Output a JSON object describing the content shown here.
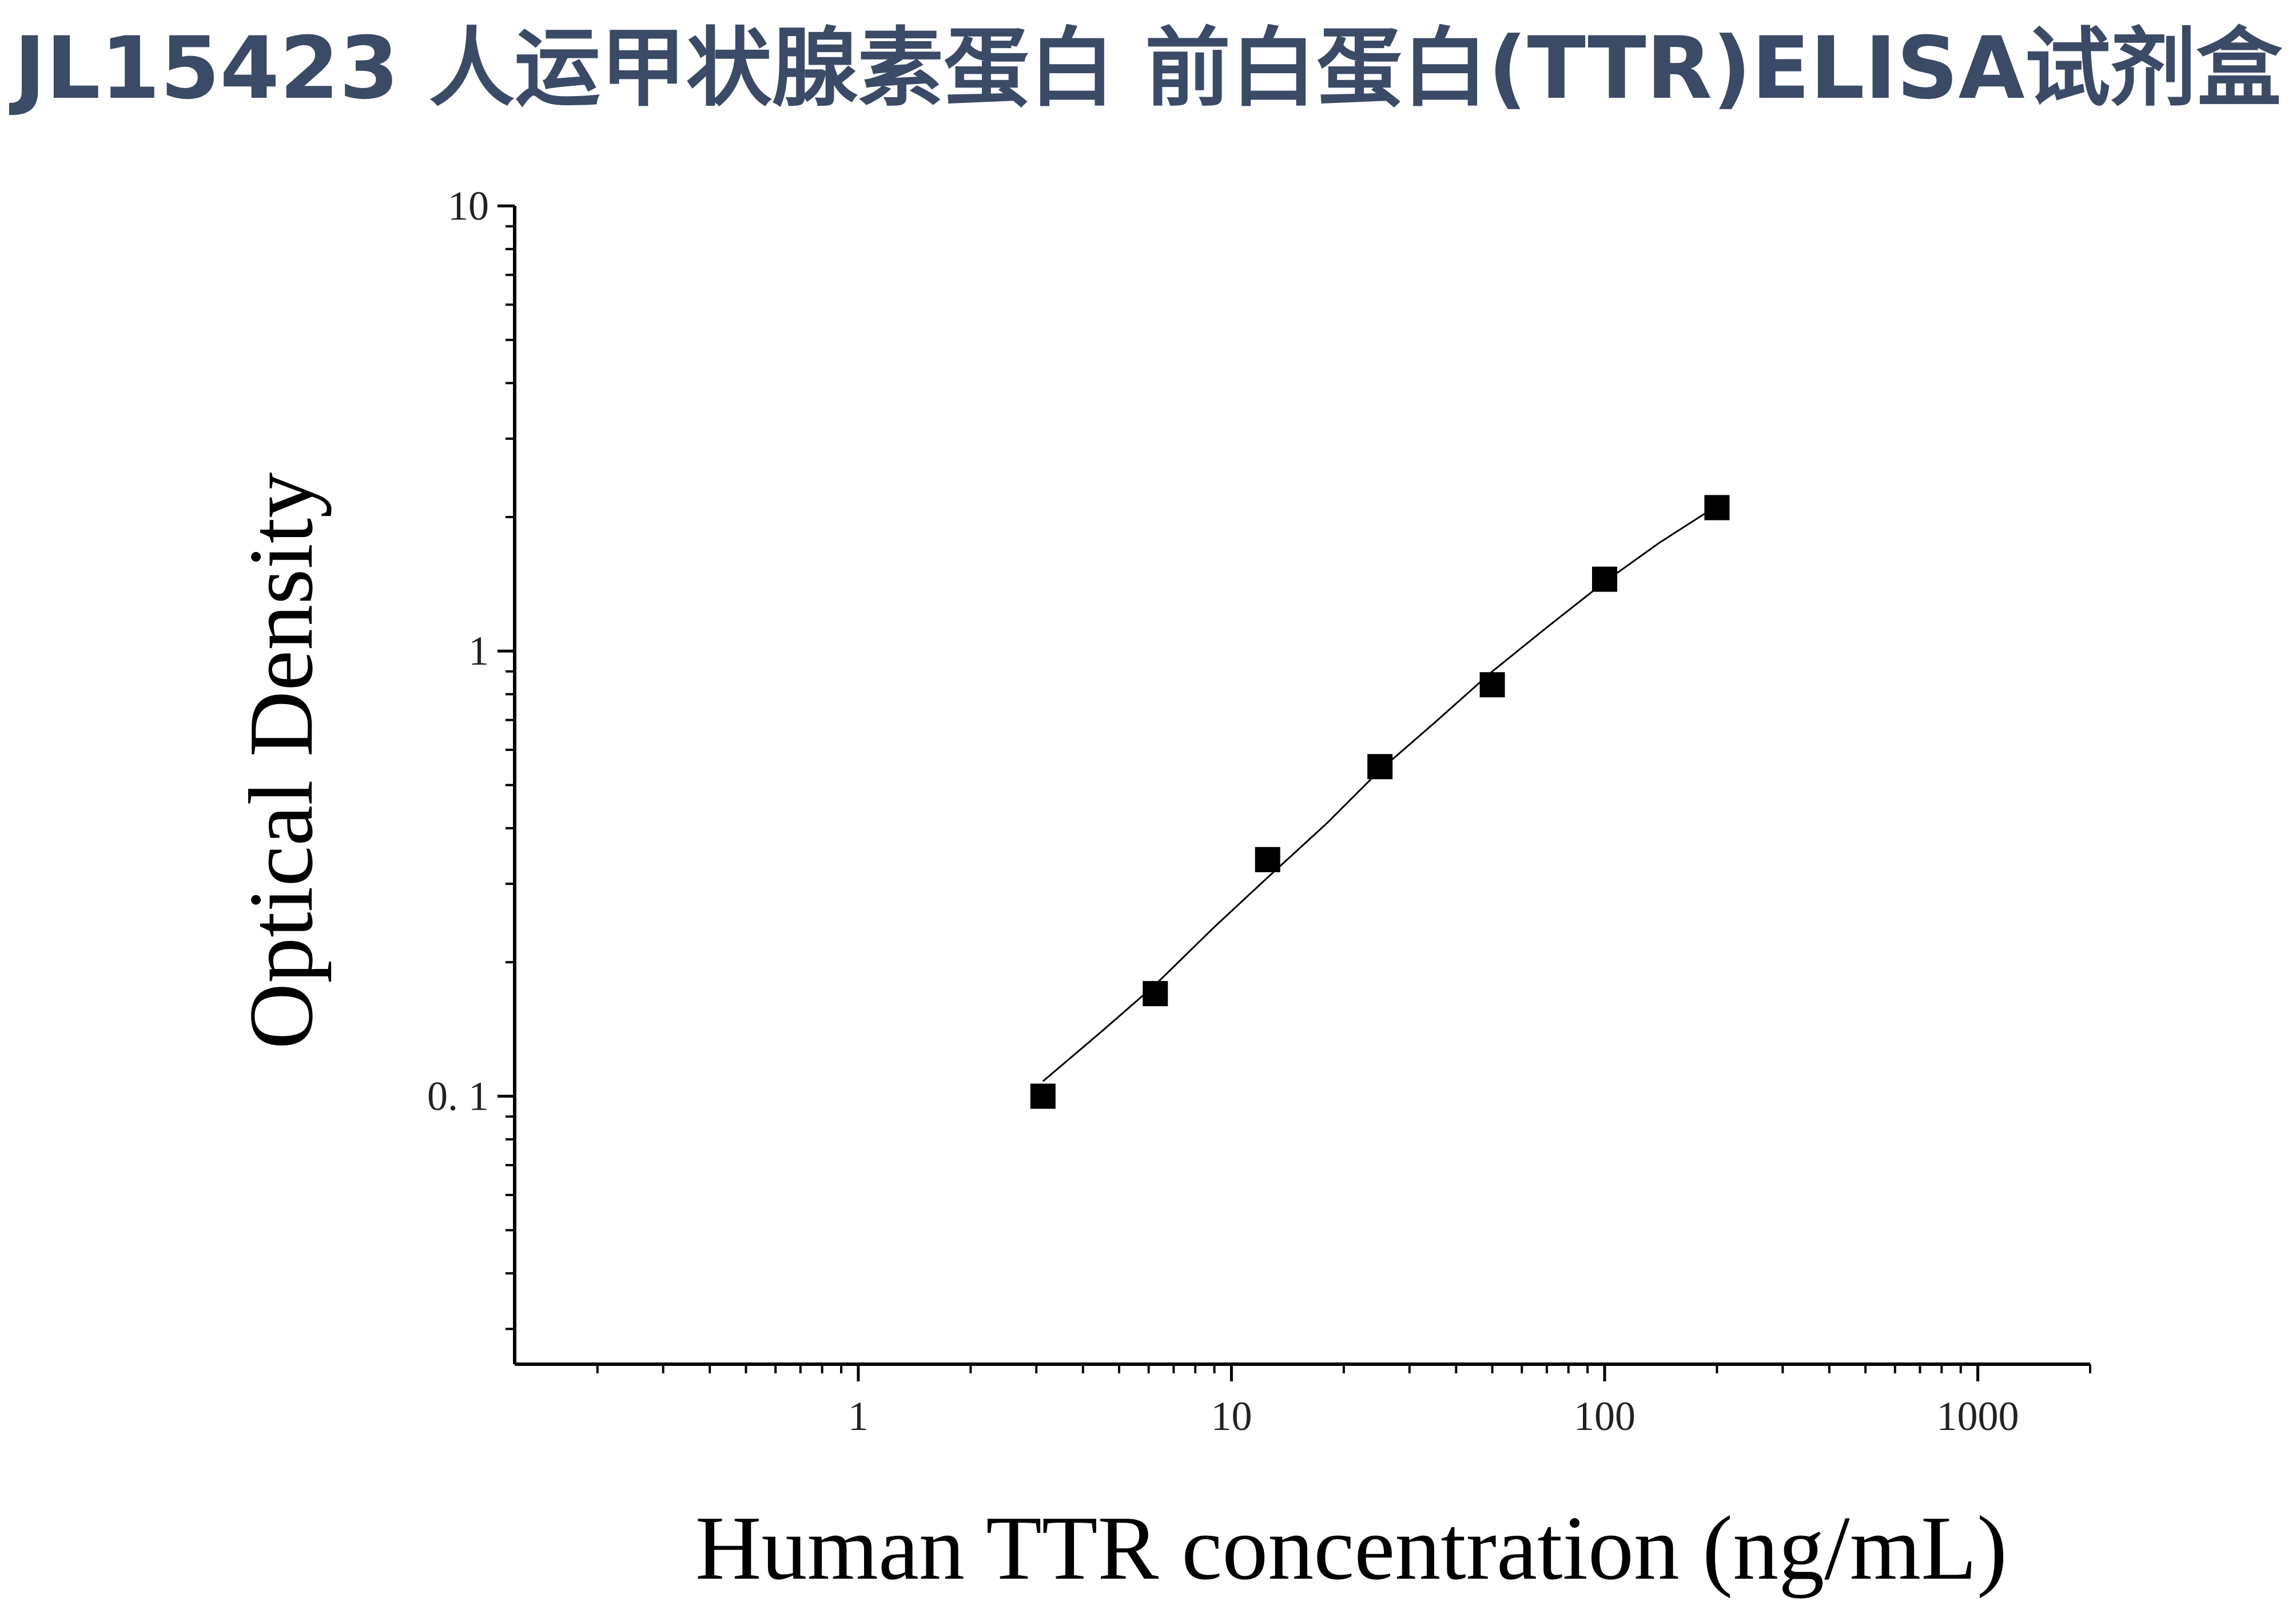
{
  "header": {
    "title": "JL15423 人运甲状腺素蛋白 前白蛋白(TTR)ELISA试剂盒"
  },
  "chart_data": {
    "type": "scatter",
    "xlabel": "Human TTR concentration (ng/mL)",
    "ylabel": "Optical Density",
    "x_scale": "log",
    "y_scale": "log",
    "xlim": [
      0.12,
      2000
    ],
    "ylim": [
      0.025,
      10
    ],
    "x_ticks": [
      {
        "value": 1,
        "label": "1"
      },
      {
        "value": 10,
        "label": "10"
      },
      {
        "value": 100,
        "label": "100"
      },
      {
        "value": 1000,
        "label": "1000"
      }
    ],
    "y_ticks": [
      {
        "value": 0.1,
        "label": "0. 1"
      },
      {
        "value": 1,
        "label": "1"
      },
      {
        "value": 10,
        "label": "10"
      }
    ],
    "grid": false,
    "marker": "square",
    "colors": {
      "marker": "#000000",
      "curve": "#000000",
      "title": "#3b4a66"
    },
    "series": [
      {
        "x": [
          3.125,
          6.25,
          12.5,
          25,
          50,
          100,
          200
        ],
        "y": [
          0.1,
          0.17,
          0.34,
          0.55,
          0.84,
          1.45,
          2.1
        ]
      }
    ],
    "fit_curve": {
      "x": [
        3.125,
        4.5,
        6.25,
        9,
        12.5,
        18,
        25,
        35,
        50,
        70,
        100,
        140,
        200
      ],
      "y": [
        0.108,
        0.14,
        0.178,
        0.24,
        0.31,
        0.41,
        0.54,
        0.69,
        0.9,
        1.13,
        1.43,
        1.75,
        2.12
      ]
    }
  }
}
